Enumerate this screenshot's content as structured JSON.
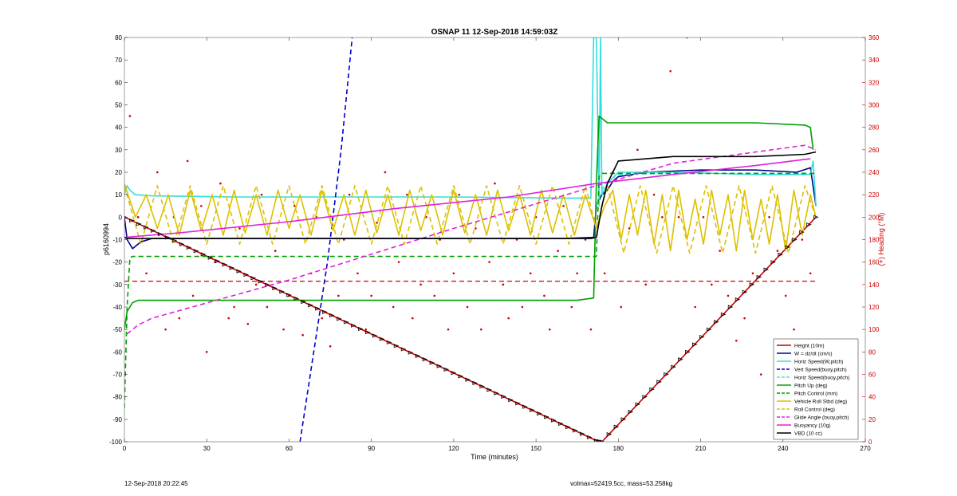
{
  "chart_data": {
    "type": "line",
    "title": "OSNAP 11 12-Sep-2018 14:59:03Z",
    "xlabel": "Time (minutes)",
    "ylabel_left": "p6160994",
    "ylabel_right": "(+) Heading (°M)",
    "xlim": [
      0,
      270
    ],
    "ylim_left": [
      -100,
      80
    ],
    "ylim_right": [
      0,
      360
    ],
    "xticks": [
      0,
      30,
      60,
      90,
      120,
      150,
      180,
      210,
      240,
      270
    ],
    "yticks_left": [
      -100,
      -90,
      -80,
      -70,
      -60,
      -50,
      -40,
      -30,
      -20,
      -10,
      0,
      10,
      20,
      30,
      40,
      50,
      60,
      70,
      80
    ],
    "yticks_right": [
      0,
      20,
      40,
      60,
      80,
      100,
      120,
      140,
      160,
      180,
      200,
      220,
      240,
      260,
      280,
      300,
      320,
      340,
      360
    ],
    "legend_position": "bottom-right",
    "series": [
      {
        "name": "Height (10m)",
        "color": "#cc0000",
        "style": "solid",
        "x": [
          0,
          172,
          174,
          252
        ],
        "y": [
          0,
          -99.5,
          -100,
          0
        ]
      },
      {
        "name": "W = dz/dt (cm/s)",
        "color": "#00008b",
        "style": "solid",
        "x": [
          0,
          1,
          3,
          6,
          10,
          40,
          80,
          120,
          160,
          171,
          172,
          174,
          176,
          178,
          180,
          190,
          210,
          230,
          245,
          250,
          252
        ],
        "y": [
          0,
          -10,
          -14,
          -11,
          -9.5,
          -9.5,
          -9.5,
          -9.5,
          -9.5,
          -9,
          5,
          10,
          12,
          16,
          18,
          20,
          21,
          21,
          20,
          22,
          5
        ]
      },
      {
        "name": "Horiz Speed(W,pitch)",
        "color": "#33dddd",
        "style": "solid",
        "x": [
          0,
          1,
          2,
          4,
          10,
          40,
          80,
          120,
          160,
          170,
          171,
          172,
          173,
          173.5,
          174,
          176,
          180,
          200,
          230,
          250,
          251,
          252
        ],
        "y": [
          10,
          14,
          12,
          10,
          9.5,
          9,
          9,
          9,
          8.5,
          8.5,
          80,
          80,
          5,
          80,
          10,
          15,
          20,
          20,
          19,
          19,
          25,
          5
        ]
      },
      {
        "name": "Vert Speed(buoy,pitch)",
        "color": "#0000cc",
        "style": "dashed",
        "x": [
          64,
          69,
          74,
          79,
          83
        ],
        "y": [
          -100,
          -60,
          -20,
          30,
          80
        ]
      },
      {
        "name": "Horiz Speed(buoy,pitch)",
        "color": "#44dddd",
        "style": "dashed",
        "x": [
          172,
          175,
          180,
          200,
          230,
          250
        ],
        "y": [
          5,
          15,
          19,
          19.5,
          19.5,
          19.5
        ]
      },
      {
        "name": "Pitch Up (deg)",
        "color": "#00a000",
        "style": "solid",
        "x": [
          0,
          1,
          3,
          5,
          10,
          30,
          60,
          90,
          120,
          150,
          165,
          171,
          172,
          173,
          176,
          180,
          190,
          210,
          230,
          248,
          250,
          251
        ],
        "y": [
          -50,
          -42,
          -38,
          -37,
          -37,
          -37,
          -37,
          -37,
          -37,
          -37,
          -37,
          -36,
          15,
          45,
          42,
          42,
          42,
          42,
          42,
          41,
          40,
          30
        ]
      },
      {
        "name": "Pitch Control (mm)",
        "color": "#00a000",
        "style": "dashed",
        "x": [
          0,
          1,
          2,
          3,
          10,
          172,
          173,
          174,
          252
        ],
        "y": [
          -85,
          -40,
          -18,
          -17.5,
          -17.5,
          -17.5,
          18,
          19.5,
          19.5
        ]
      },
      {
        "name": "Vehicle Roll Stbd (deg)",
        "color": "#ddc000",
        "style": "solid",
        "x": [
          0,
          4,
          8,
          12,
          16,
          20,
          24,
          28,
          32,
          36,
          40,
          44,
          48,
          52,
          56,
          60,
          64,
          68,
          72,
          76,
          80,
          84,
          88,
          92,
          96,
          100,
          104,
          108,
          112,
          116,
          120,
          124,
          128,
          132,
          136,
          140,
          144,
          148,
          152,
          156,
          160,
          164,
          168,
          172,
          175,
          178,
          181,
          184,
          187,
          190,
          193,
          196,
          199,
          202,
          205,
          208,
          211,
          214,
          217,
          220,
          223,
          226,
          229,
          232,
          235,
          238,
          241,
          244,
          247,
          250,
          252
        ],
        "y": [
          15,
          0,
          10,
          -5,
          10,
          -8,
          12,
          -6,
          10,
          -8,
          12,
          -7,
          10,
          -8,
          12,
          -5,
          10,
          -8,
          12,
          -6,
          10,
          -8,
          12,
          -7,
          10,
          -8,
          12,
          -6,
          10,
          -8,
          12,
          -7,
          10,
          -8,
          12,
          -6,
          10,
          -8,
          12,
          -7,
          10,
          -8,
          10,
          -5,
          5,
          12,
          -10,
          10,
          -8,
          12,
          -12,
          10,
          -15,
          12,
          -10,
          8,
          -12,
          12,
          -8,
          10,
          -15,
          12,
          -10,
          8,
          -12,
          10,
          -15,
          12,
          -8,
          10,
          0
        ]
      },
      {
        "name": "Roll Control (deg)",
        "color": "#ddc000",
        "style": "dashed",
        "x": [
          0,
          6,
          12,
          18,
          24,
          30,
          36,
          42,
          48,
          54,
          60,
          66,
          72,
          78,
          84,
          90,
          96,
          102,
          108,
          114,
          120,
          126,
          132,
          138,
          144,
          150,
          156,
          162,
          168,
          172,
          176,
          182,
          188,
          194,
          200,
          206,
          212,
          218,
          224,
          230,
          236,
          242,
          248,
          252
        ],
        "y": [
          14,
          -12,
          14,
          -12,
          14,
          -12,
          14,
          -12,
          14,
          -12,
          14,
          -12,
          14,
          -12,
          14,
          -12,
          14,
          -12,
          14,
          -12,
          14,
          -12,
          14,
          -12,
          14,
          -12,
          14,
          -12,
          14,
          -5,
          14,
          -16,
          14,
          -16,
          14,
          -16,
          14,
          -16,
          14,
          -16,
          14,
          -16,
          14,
          0
        ]
      },
      {
        "name": "Glide Angle (buoy,pitch)",
        "color": "#dd22dd",
        "style": "dashed",
        "x": [
          1,
          5,
          10,
          60,
          120,
          172,
          200,
          248,
          252
        ],
        "y": [
          -52,
          -48,
          -45,
          -28,
          -5,
          14,
          24,
          32,
          30
        ]
      },
      {
        "name": "Buoyancy (10g)",
        "color": "#dd22dd",
        "style": "solid",
        "x": [
          0,
          20,
          60,
          100,
          140,
          172,
          200,
          230,
          250
        ],
        "y": [
          -9,
          -7,
          -2,
          4,
          9,
          15,
          19,
          23,
          26
        ]
      },
      {
        "name": "VBD (10 cc)",
        "color": "#000000",
        "style": "solid",
        "x": [
          0,
          1,
          3,
          10,
          40,
          80,
          120,
          160,
          170,
          172,
          174,
          176,
          180,
          200,
          230,
          248,
          252
        ],
        "y": [
          -9,
          -9.5,
          -9.5,
          -9.5,
          -9.5,
          -9.5,
          -9.5,
          -9.5,
          -9.5,
          -9,
          5,
          15,
          25,
          27,
          27,
          28,
          29
        ]
      }
    ],
    "heading_reference": {
      "name": "",
      "color": "#cc0000",
      "style": "dashed",
      "y_right": 143
    },
    "heading_scatter": {
      "color": "#cc0000",
      "x": [
        2,
        5,
        8,
        12,
        15,
        18,
        20,
        23,
        25,
        28,
        30,
        33,
        35,
        38,
        40,
        42,
        45,
        48,
        50,
        52,
        55,
        58,
        60,
        62,
        65,
        68,
        70,
        72,
        75,
        78,
        80,
        82,
        85,
        88,
        90,
        92,
        95,
        98,
        100,
        103,
        105,
        108,
        110,
        113,
        115,
        118,
        120,
        122,
        125,
        128,
        130,
        133,
        135,
        138,
        140,
        143,
        145,
        148,
        150,
        153,
        155,
        158,
        160,
        163,
        165,
        168,
        170,
        175,
        178,
        181,
        184,
        187,
        190,
        193,
        196,
        199,
        202,
        205,
        208,
        211,
        214,
        217,
        220,
        223,
        226,
        229,
        232,
        235,
        238,
        241,
        244,
        247,
        250
      ],
      "y": [
        290,
        200,
        150,
        240,
        100,
        200,
        110,
        250,
        130,
        210,
        80,
        160,
        230,
        110,
        120,
        190,
        105,
        140,
        220,
        120,
        170,
        100,
        130,
        210,
        95,
        150,
        200,
        110,
        85,
        130,
        180,
        220,
        150,
        100,
        130,
        195,
        240,
        120,
        160,
        220,
        110,
        140,
        200,
        130,
        180,
        100,
        150,
        220,
        120,
        190,
        100,
        160,
        230,
        140,
        110,
        180,
        120,
        150,
        200,
        130,
        100,
        170,
        210,
        120,
        150,
        180,
        100,
        150,
        240,
        120,
        190,
        260,
        140,
        220,
        200,
        330,
        200,
        360,
        120,
        200,
        140,
        170,
        130,
        90,
        110,
        150,
        60,
        200,
        170,
        130,
        100,
        180,
        150
      ]
    },
    "legend": [
      "Height (10m)",
      "W = dz/dt (cm/s)",
      "Horiz Speed(W,pitch)",
      "Vert Speed(buoy,pitch)",
      "Horiz Speed(buoy,pitch)",
      "Pitch Up (deg)",
      "Pitch Control (mm)",
      "Vehicle Roll Stbd (deg)",
      "Roll Control (deg)",
      "Glide Angle (buoy,pitch)",
      "Buoyancy (10g)",
      "VBD (10 cc)"
    ]
  },
  "footer": {
    "left": "12-Sep-2018 20:22:45",
    "right": "volmax=52419.5cc, mass=53.258kg"
  }
}
